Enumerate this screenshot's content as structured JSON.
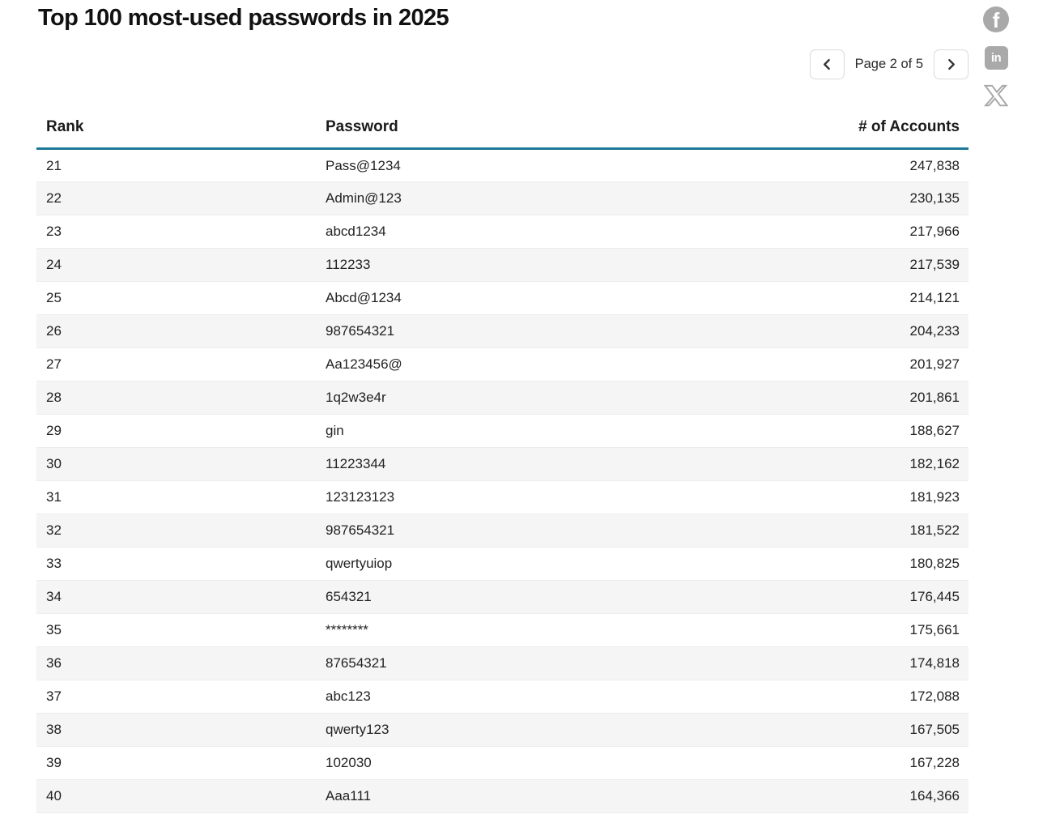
{
  "header": {
    "title": "Top 100 most-used passwords in 2025"
  },
  "pagination": {
    "label": "Page 2 of 5",
    "prev_icon": "chevron-left",
    "next_icon": "chevron-right"
  },
  "social_icons": [
    {
      "name": "facebook-share",
      "glyph": "f"
    },
    {
      "name": "linkedin-share",
      "glyph": "in"
    },
    {
      "name": "x-twitter-share",
      "glyph": "X"
    }
  ],
  "table": {
    "columns": [
      "Rank",
      "Password",
      "# of Accounts"
    ],
    "rows": [
      {
        "rank": "21",
        "password": "Pass@1234",
        "accounts": "247,838"
      },
      {
        "rank": "22",
        "password": "Admin@123",
        "accounts": "230,135"
      },
      {
        "rank": "23",
        "password": "abcd1234",
        "accounts": "217,966"
      },
      {
        "rank": "24",
        "password": "112233",
        "accounts": "217,539"
      },
      {
        "rank": "25",
        "password": "Abcd@1234",
        "accounts": "214,121"
      },
      {
        "rank": "26",
        "password": "987654321",
        "accounts": "204,233"
      },
      {
        "rank": "27",
        "password": "Aa123456@",
        "accounts": "201,927"
      },
      {
        "rank": "28",
        "password": "1q2w3e4r",
        "accounts": "201,861"
      },
      {
        "rank": "29",
        "password": "gin",
        "accounts": "188,627"
      },
      {
        "rank": "30",
        "password": "11223344",
        "accounts": "182,162"
      },
      {
        "rank": "31",
        "password": "123123123",
        "accounts": "181,923"
      },
      {
        "rank": "32",
        "password": "987654321",
        "accounts": "181,522"
      },
      {
        "rank": "33",
        "password": "qwertyuiop",
        "accounts": "180,825"
      },
      {
        "rank": "34",
        "password": "654321",
        "accounts": "176,445"
      },
      {
        "rank": "35",
        "password": "********",
        "accounts": "175,661"
      },
      {
        "rank": "36",
        "password": "87654321",
        "accounts": "174,818"
      },
      {
        "rank": "37",
        "password": "abc123",
        "accounts": "172,088"
      },
      {
        "rank": "38",
        "password": "qwerty123",
        "accounts": "167,505"
      },
      {
        "rank": "39",
        "password": "102030",
        "accounts": "167,228"
      },
      {
        "rank": "40",
        "password": "Aaa111",
        "accounts": "164,366"
      }
    ]
  },
  "colors": {
    "accent": "#1e7898",
    "row_alt": "#f5f5f6",
    "icon_gray": "#a9a9a9"
  }
}
